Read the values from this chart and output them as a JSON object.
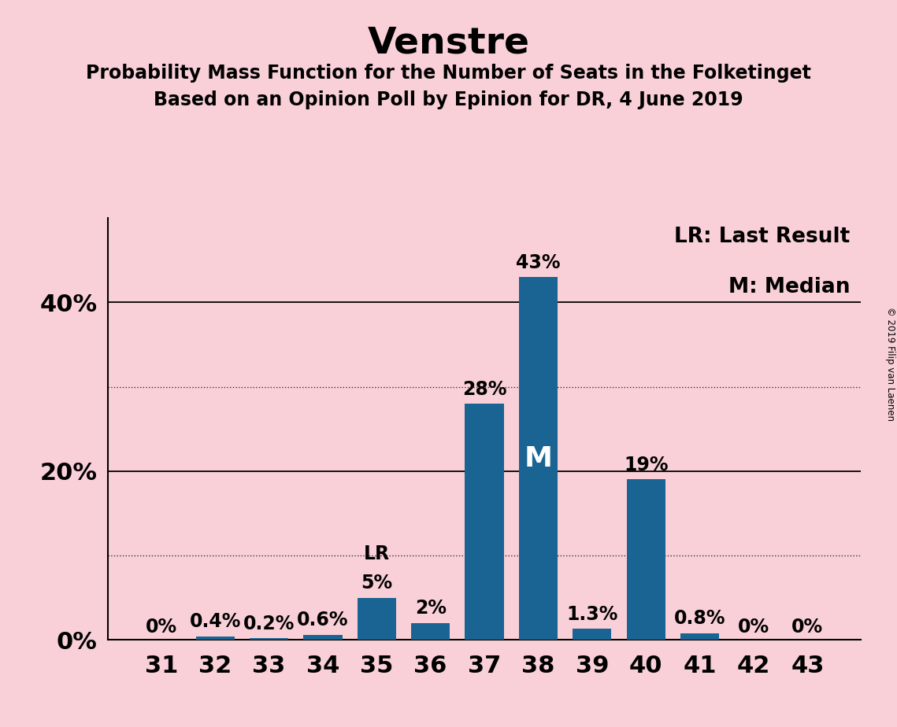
{
  "title": "Venstre",
  "subtitle1": "Probability Mass Function for the Number of Seats in the Folketinget",
  "subtitle2": "Based on an Opinion Poll by Epinion for DR, 4 June 2019",
  "categories": [
    31,
    32,
    33,
    34,
    35,
    36,
    37,
    38,
    39,
    40,
    41,
    42,
    43
  ],
  "values": [
    0.0,
    0.4,
    0.2,
    0.6,
    5.0,
    2.0,
    28.0,
    43.0,
    1.3,
    19.0,
    0.8,
    0.0,
    0.0
  ],
  "labels": [
    "0%",
    "0.4%",
    "0.2%",
    "0.6%",
    "5%",
    "2%",
    "28%",
    "43%",
    "1.3%",
    "19%",
    "0.8%",
    "0%",
    "0%"
  ],
  "bar_color": "#1a6494",
  "background_color": "#f9d0d8",
  "title_fontsize": 34,
  "subtitle_fontsize": 17,
  "axis_label_fontsize": 22,
  "bar_label_fontsize": 17,
  "legend_fontsize": 19,
  "legend_text": [
    "LR: Last Result",
    "M: Median"
  ],
  "median_bar": 38,
  "lr_bar": 35,
  "median_label": "M",
  "lr_label": "LR",
  "copyright_text": "© 2019 Filip van Laenen",
  "solid_yticks": [
    20,
    40
  ],
  "dotted_yticks": [
    10,
    30
  ],
  "ylim": [
    0,
    50
  ],
  "ytick_labels_pos": [
    0,
    20,
    40
  ],
  "ytick_labels": [
    "0%",
    "20%",
    "40%"
  ]
}
